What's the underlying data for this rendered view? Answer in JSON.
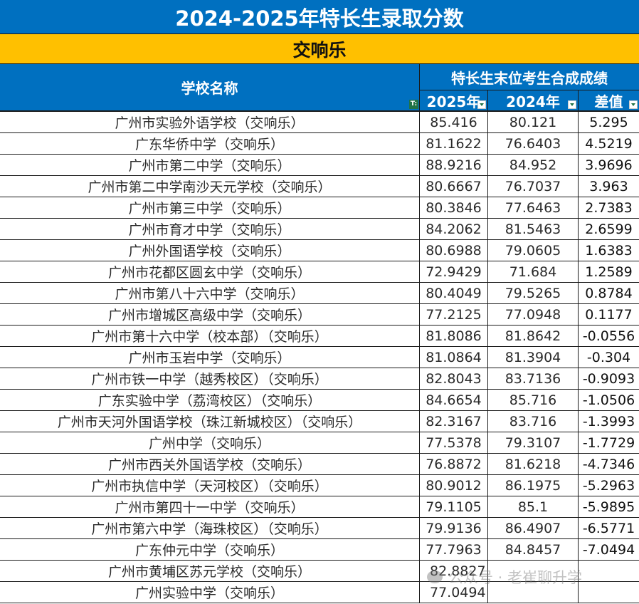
{
  "title": "2024-2025年特长生录取分数",
  "category": "交响乐",
  "header": {
    "school_name": "学校名称",
    "group_label": "特长生末位考生合成成绩",
    "col_2025": "2025年",
    "col_2024": "2024年",
    "col_diff": "差值"
  },
  "colors": {
    "header_blue": "#0070C0",
    "category_orange": "#FFC000",
    "filter_green": "#217346"
  },
  "rows": [
    {
      "school": "广州市实验外语学校（交响乐）",
      "y2025": "85.416",
      "y2024": "80.121",
      "diff": "5.295"
    },
    {
      "school": "广东华侨中学（交响乐）",
      "y2025": "81.1622",
      "y2024": "76.6403",
      "diff": "4.5219"
    },
    {
      "school": "广州市第二中学（交响乐）",
      "y2025": "88.9216",
      "y2024": "84.952",
      "diff": "3.9696"
    },
    {
      "school": "广州市第二中学南沙天元学校（交响乐）",
      "y2025": "80.6667",
      "y2024": "76.7037",
      "diff": "3.963"
    },
    {
      "school": "广州市第三中学（交响乐）",
      "y2025": "80.3846",
      "y2024": "77.6463",
      "diff": "2.7383"
    },
    {
      "school": "广州市育才中学（交响乐）",
      "y2025": "84.2062",
      "y2024": "81.5463",
      "diff": "2.6599"
    },
    {
      "school": "广州外国语学校（交响乐）",
      "y2025": "80.6988",
      "y2024": "79.0605",
      "diff": "1.6383"
    },
    {
      "school": "广州市花都区圆玄中学（交响乐）",
      "y2025": "72.9429",
      "y2024": "71.684",
      "diff": "1.2589"
    },
    {
      "school": "广州市第八十六中学（交响乐）",
      "y2025": "80.4049",
      "y2024": "79.5265",
      "diff": "0.8784"
    },
    {
      "school": "广州市增城区高级中学（交响乐）",
      "y2025": "77.2125",
      "y2024": "77.0948",
      "diff": "0.1177"
    },
    {
      "school": "广州市第十六中学（校本部）（交响乐）",
      "y2025": "81.8086",
      "y2024": "81.8642",
      "diff": "-0.0556"
    },
    {
      "school": "广州市玉岩中学（交响乐）",
      "y2025": "81.0864",
      "y2024": "81.3904",
      "diff": "-0.304"
    },
    {
      "school": "广州市铁一中学（越秀校区）（交响乐）",
      "y2025": "82.8043",
      "y2024": "83.7136",
      "diff": "-0.9093"
    },
    {
      "school": "广东实验中学（荔湾校区）（交响乐）",
      "y2025": "84.6654",
      "y2024": "85.716",
      "diff": "-1.0506"
    },
    {
      "school": "广州市天河外国语学校（珠江新城校区）（交响乐）",
      "y2025": "82.3167",
      "y2024": "83.716",
      "diff": "-1.3993"
    },
    {
      "school": "广州中学（交响乐）",
      "y2025": "77.5378",
      "y2024": "79.3107",
      "diff": "-1.7729"
    },
    {
      "school": "广州市西关外国语学校（交响乐）",
      "y2025": "76.8872",
      "y2024": "81.6218",
      "diff": "-4.7346"
    },
    {
      "school": "广州市执信中学（天河校区）（交响乐）",
      "y2025": "80.9012",
      "y2024": "86.1975",
      "diff": "-5.2963"
    },
    {
      "school": "广州市第四十一中学（交响乐）",
      "y2025": "79.1105",
      "y2024": "85.1",
      "diff": "-5.9895"
    },
    {
      "school": "广州市第六中学（海珠校区）（交响乐）",
      "y2025": "79.9136",
      "y2024": "86.4907",
      "diff": "-6.5771"
    },
    {
      "school": "广东仲元中学（交响乐）",
      "y2025": "77.7963",
      "y2024": "84.8457",
      "diff": "-7.0494"
    },
    {
      "school": "广州市黄埔区苏元学校（交响乐）",
      "y2025": "82.8827",
      "y2024": "",
      "diff": ""
    },
    {
      "school": "广州实验中学（交响乐）",
      "y2025": "77.0494",
      "y2024": "",
      "diff": ""
    }
  ],
  "watermark": "公众号 · 老崔聊升学"
}
